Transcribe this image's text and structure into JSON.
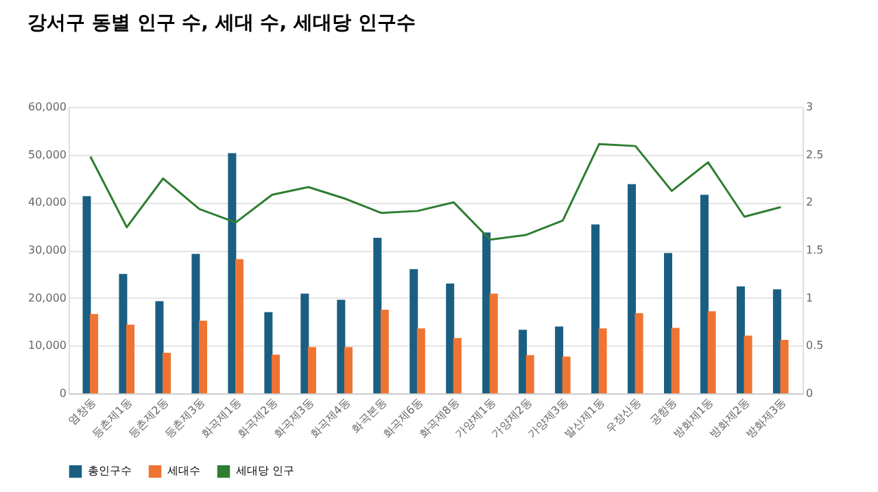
{
  "chart_data": {
    "type": "bar",
    "title": "강서구 동별 인구 수, 세대 수, 세대당 인구수",
    "categories": [
      "염창동",
      "등촌제1동",
      "등촌제2동",
      "등촌제3동",
      "화곡제1동",
      "화곡제2동",
      "화곡제3동",
      "화곡제4동",
      "화곡본동",
      "화곡제6동",
      "화곡제8동",
      "가양제1동",
      "가양제2동",
      "가양제3동",
      "발산제1동",
      "우장산동",
      "공항동",
      "방화제1동",
      "방화제2동",
      "방화제3동"
    ],
    "series": [
      {
        "name": "총인구수",
        "color": "#1a5f82",
        "values": [
          41300,
          25000,
          19300,
          29200,
          50300,
          17000,
          20900,
          19600,
          32600,
          26000,
          23000,
          33700,
          13300,
          14000,
          35400,
          43800,
          29400,
          41600,
          22400,
          21800
        ]
      },
      {
        "name": "세대수",
        "color": "#ef7433",
        "values": [
          16600,
          14400,
          8500,
          15200,
          28100,
          8100,
          9700,
          9700,
          17500,
          13600,
          11600,
          20900,
          8000,
          7700,
          13600,
          16800,
          13700,
          17200,
          12100,
          11200
        ]
      },
      {
        "name": "세대당 인구",
        "type": "line",
        "axis": "y2",
        "color": "#2e7d32",
        "values": [
          2.48,
          1.74,
          2.25,
          1.93,
          1.79,
          2.08,
          2.16,
          2.04,
          1.89,
          1.91,
          2.0,
          1.61,
          1.66,
          1.81,
          2.61,
          2.59,
          2.12,
          2.42,
          1.85,
          1.95
        ]
      }
    ],
    "ylim": [
      0,
      60000
    ],
    "yticks": [
      0,
      {
        "value": 10000,
        "label": "10,000"
      },
      {
        "value": 20000,
        "label": "20,000"
      },
      {
        "value": 30000,
        "label": "30,000"
      },
      {
        "value": 40000,
        "label": "40,000"
      },
      {
        "value": 50000,
        "label": "50,000"
      },
      {
        "value": 60000,
        "label": "60,000"
      }
    ],
    "y2lim": [
      0,
      3
    ],
    "y2ticks": [
      0,
      0.5,
      1,
      1.5,
      2,
      2.5,
      3
    ],
    "grid": "y",
    "legend": "bottom",
    "marker": "none",
    "line_style": "solid"
  }
}
